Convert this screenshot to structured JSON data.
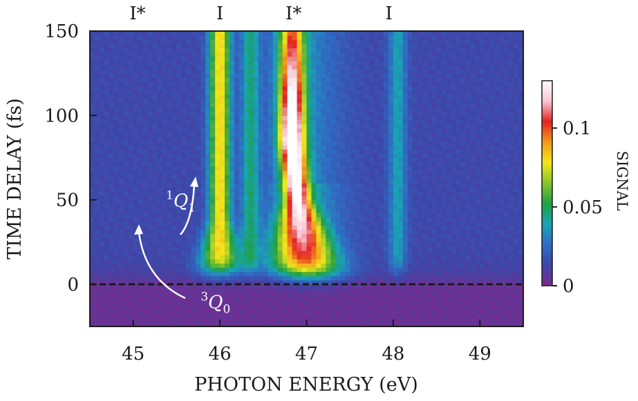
{
  "chart_data": {
    "type": "heatmap",
    "title": "",
    "xlabel": "PHOTON ENERGY (eV)",
    "ylabel": "TIME DELAY (fs)",
    "colorbar_label": "SIGNAL",
    "xlim": [
      44.5,
      49.5
    ],
    "ylim": [
      -25,
      150
    ],
    "x_ticks": [
      45,
      46,
      47,
      48,
      49
    ],
    "y_ticks": [
      0,
      50,
      100,
      150
    ],
    "colorbar_range": [
      0,
      0.13
    ],
    "colorbar_ticks": [
      0,
      0.05,
      0.1
    ],
    "colorbar_tick_labels": [
      "0",
      "0.05",
      "0.1"
    ],
    "colormap": [
      "#7a2a8c",
      "#3f46a8",
      "#2f6cc4",
      "#19a4b2",
      "#1fa046",
      "#86c42a",
      "#f2e51c",
      "#f39a1d",
      "#e32222",
      "#f7c6d2",
      "#ffffff"
    ],
    "background_color": "#8b2f8f",
    "reference_line": {
      "y": 0,
      "style": "dashed"
    },
    "top_labels": [
      {
        "x": 45.05,
        "text": "I*"
      },
      {
        "x": 46.0,
        "text": "I"
      },
      {
        "x": 46.85,
        "text": "I*"
      },
      {
        "x": 47.95,
        "text": "I"
      }
    ],
    "annotations": [
      {
        "state": "1",
        "symbol": "Q",
        "sub": "1",
        "x": 45.55,
        "y": 50
      },
      {
        "state": "3",
        "symbol": "Q",
        "sub": "0",
        "x": 45.95,
        "y": -10
      }
    ],
    "features": [
      {
        "label": "I",
        "center_ev": 46.0,
        "onset_fs": 8,
        "peak_signal": 0.068
      },
      {
        "label": "I*",
        "center_ev_start": 47.05,
        "center_ev_end": 46.83,
        "onset_fs": 5,
        "peak_signal": 0.13
      },
      {
        "label": "I",
        "center_ev": 48.05,
        "onset_fs": 8,
        "peak_signal": 0.025
      },
      {
        "label": "",
        "center_ev": 46.35,
        "onset_fs": 10,
        "peak_signal": 0.03
      }
    ]
  }
}
